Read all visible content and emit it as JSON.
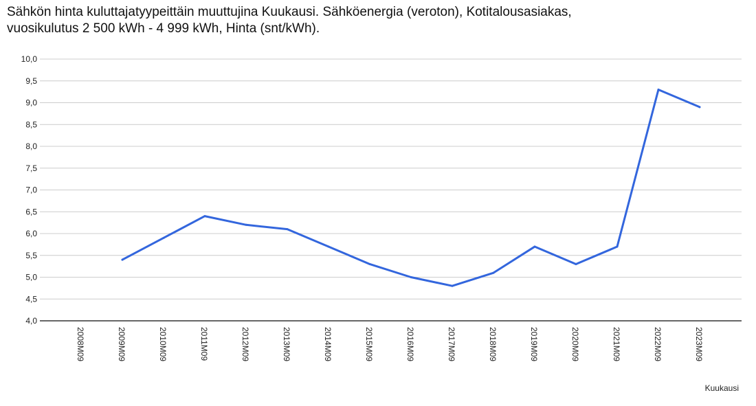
{
  "title_line1": "Sähkön hinta kuluttajatyypeittäin muuttujina Kuukausi. Sähköenergia (veroton), Kotitalousasiakas,",
  "title_line2": "vuosikulutus 2 500 kWh - 4 999 kWh, Hinta (snt/kWh).",
  "colors": {
    "series": "#3366dd",
    "grid": "#cccccc",
    "axis": "#333333"
  },
  "chart_data": {
    "type": "line",
    "title": "Sähkön hinta kuluttajatyypeittäin muuttujina Kuukausi. Sähköenergia (veroton), Kotitalousasiakas, vuosikulutus 2 500 kWh - 4 999 kWh, Hinta (snt/kWh).",
    "xlabel": "Kuukausi",
    "ylabel": "",
    "ylim": [
      4.0,
      10.0
    ],
    "y_ticks": [
      "4,0",
      "4,5",
      "5,0",
      "5,5",
      "6,0",
      "6,5",
      "7,0",
      "7,5",
      "8,0",
      "8,5",
      "9,0",
      "9,5",
      "10,0"
    ],
    "grid": true,
    "categories": [
      "2008M09",
      "2009M09",
      "2010M09",
      "2011M09",
      "2012M09",
      "2013M09",
      "2014M09",
      "2015M09",
      "2016M09",
      "2017M09",
      "2018M09",
      "2019M09",
      "2020M09",
      "2021M09",
      "2022M09",
      "2023M09"
    ],
    "series": [
      {
        "values": [
          null,
          5.4,
          5.9,
          6.4,
          6.2,
          6.1,
          5.7,
          5.3,
          5.0,
          4.8,
          5.1,
          5.7,
          5.3,
          5.7,
          9.3,
          8.9
        ]
      }
    ]
  }
}
